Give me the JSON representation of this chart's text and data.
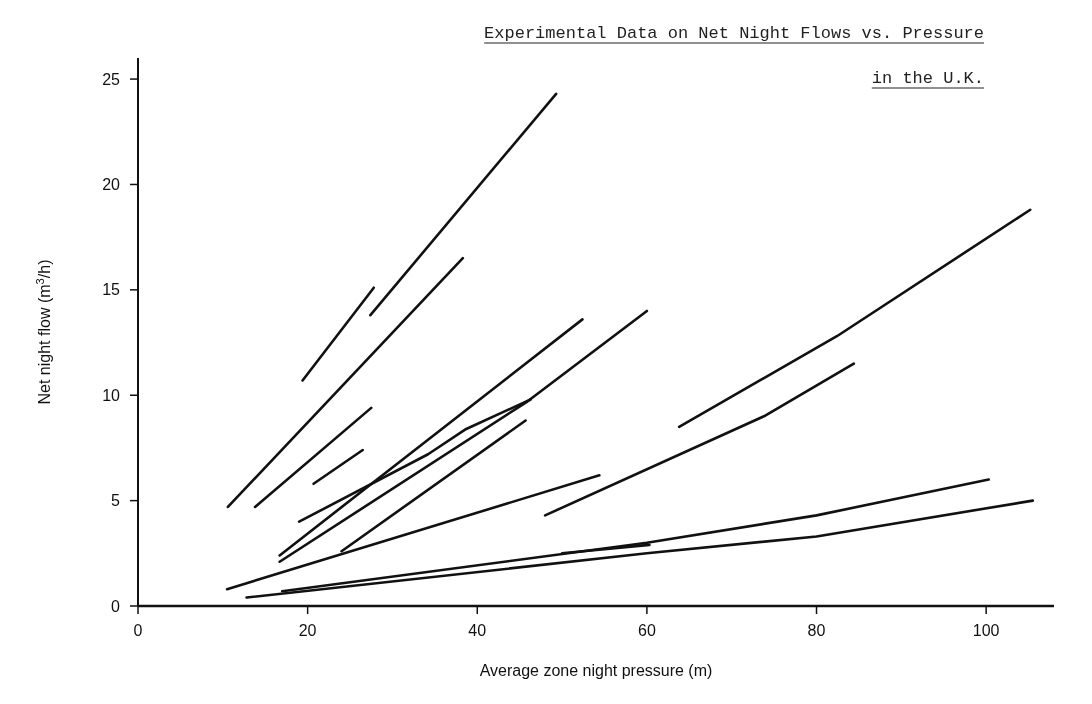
{
  "chart_data": {
    "type": "line",
    "title": "Experimental Data on Net Night Flows vs. Pressure",
    "subtitle": "in the U.K.",
    "xlabel": "Average zone night pressure (m)",
    "ylabel": "Net night flow (m$^{3}$/h)",
    "xlim": [
      0,
      108
    ],
    "ylim": [
      0,
      26
    ],
    "xticks": [
      0,
      20,
      40,
      60,
      80,
      100
    ],
    "yticks": [
      0,
      5,
      10,
      15,
      20,
      25
    ],
    "grid": false,
    "marker": "none",
    "line_style": "solid",
    "series": [
      {
        "color": "#111111",
        "x": [
          10.6,
          38.3
        ],
        "values": [
          4.7,
          16.5
        ]
      },
      {
        "color": "#111111",
        "x": [
          27.4,
          49.3
        ],
        "values": [
          13.8,
          24.3
        ]
      },
      {
        "color": "#111111",
        "x": [
          19.4,
          27.8
        ],
        "values": [
          10.7,
          15.1
        ]
      },
      {
        "color": "#111111",
        "x": [
          13.8,
          27.5
        ],
        "values": [
          4.7,
          9.4
        ]
      },
      {
        "color": "#111111",
        "x": [
          20.7,
          26.5
        ],
        "values": [
          5.8,
          7.4
        ]
      },
      {
        "color": "#111111",
        "x": [
          19,
          34.2,
          38.7,
          46.3
        ],
        "values": [
          4,
          7.2,
          8.4,
          9.8
        ]
      },
      {
        "color": "#111111",
        "x": [
          16.7,
          52.4
        ],
        "values": [
          2.4,
          13.6
        ]
      },
      {
        "color": "#111111",
        "x": [
          16.7,
          45.9,
          60
        ],
        "values": [
          2.1,
          9.7,
          14
        ]
      },
      {
        "color": "#111111",
        "x": [
          24,
          45.7
        ],
        "values": [
          2.6,
          8.8
        ]
      },
      {
        "color": "#111111",
        "x": [
          10.5,
          54.4
        ],
        "values": [
          0.8,
          6.2
        ]
      },
      {
        "color": "#111111",
        "x": [
          48,
          73.8,
          84.4
        ],
        "values": [
          4.3,
          9,
          11.5
        ]
      },
      {
        "color": "#111111",
        "x": [
          63.8,
          82.4,
          105.2
        ],
        "values": [
          8.5,
          12.8,
          18.8
        ]
      },
      {
        "color": "#111111",
        "x": [
          17,
          60,
          80,
          100.3
        ],
        "values": [
          0.7,
          3,
          4.3,
          6
        ]
      },
      {
        "color": "#111111",
        "x": [
          12.8,
          60,
          80,
          105.5
        ],
        "values": [
          0.4,
          2.5,
          3.3,
          5
        ]
      },
      {
        "color": "#111111",
        "x": [
          50,
          60.3
        ],
        "values": [
          2.5,
          2.9
        ]
      }
    ]
  }
}
